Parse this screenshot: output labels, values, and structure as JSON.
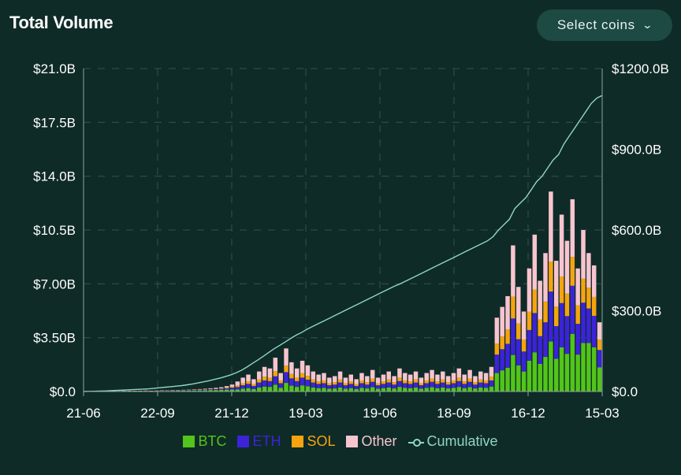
{
  "header": {
    "title": "Total Volume",
    "select_label": "Select coins"
  },
  "colors": {
    "BTC": "#52c41a",
    "ETH": "#3b23d9",
    "SOL": "#f5a40f",
    "Other": "#f7c5cf",
    "Cumulative": "#8fd6c4",
    "grid": "#2a4a45"
  },
  "chart_data": {
    "type": "bar",
    "title": "Total Volume",
    "x_ticks": [
      "21-06",
      "22-09",
      "21-12",
      "19-03",
      "19-06",
      "18-09",
      "16-12",
      "15-03"
    ],
    "y_left_ticks": [
      "$0.0",
      "$3.50B",
      "$7.00B",
      "$10.5B",
      "$14.0B",
      "$17.5B",
      "$21.0B"
    ],
    "y_right_ticks": [
      "$0.0",
      "$300.0B",
      "$600.0B",
      "$900.0B",
      "$1200.0B"
    ],
    "ylim_left": [
      0,
      21.0
    ],
    "ylim_right": [
      0,
      1200
    ],
    "grid": true,
    "legend_position": "bottom",
    "stack_series": [
      "BTC",
      "ETH",
      "SOL",
      "Other"
    ],
    "legend": [
      "BTC",
      "ETH",
      "SOL",
      "Other",
      "Cumulative"
    ],
    "weekly_total_volume_B": [
      0.02,
      0.02,
      0.03,
      0.03,
      0.03,
      0.04,
      0.03,
      0.04,
      0.05,
      0.04,
      0.05,
      0.06,
      0.05,
      0.06,
      0.08,
      0.07,
      0.09,
      0.1,
      0.11,
      0.12,
      0.14,
      0.16,
      0.18,
      0.21,
      0.24,
      0.28,
      0.35,
      0.45,
      0.65,
      0.9,
      1.1,
      0.8,
      1.3,
      1.6,
      1.5,
      2.2,
      1.2,
      2.8,
      1.9,
      1.5,
      2.0,
      1.7,
      1.3,
      1.1,
      1.2,
      0.9,
      1.0,
      1.3,
      0.9,
      1.1,
      0.8,
      1.2,
      1.0,
      1.4,
      0.9,
      1.1,
      1.3,
      1.0,
      1.5,
      1.2,
      1.1,
      1.3,
      0.9,
      1.2,
      1.4,
      1.1,
      1.3,
      1.0,
      1.2,
      1.5,
      1.1,
      1.4,
      1.0,
      1.3,
      1.2,
      1.6,
      4.8,
      5.5,
      6.2,
      9.5,
      6.8,
      5.2,
      8.0,
      10.2,
      7.2,
      9.0,
      13.0,
      8.5,
      11.5,
      9.8,
      12.5,
      8.0,
      10.5,
      9.0,
      8.2,
      4.5
    ],
    "btc_share": [
      0.55,
      0.55,
      0.55,
      0.55,
      0.55,
      0.55,
      0.55,
      0.55,
      0.55,
      0.55,
      0.55,
      0.55,
      0.55,
      0.55,
      0.5,
      0.5,
      0.5,
      0.5,
      0.5,
      0.5,
      0.45,
      0.45,
      0.45,
      0.45,
      0.4,
      0.4,
      0.35,
      0.3,
      0.2,
      0.2,
      0.2,
      0.2,
      0.2,
      0.2,
      0.2,
      0.2,
      0.2,
      0.2,
      0.2,
      0.2,
      0.2,
      0.2,
      0.2,
      0.2,
      0.2,
      0.2,
      0.2,
      0.2,
      0.2,
      0.2,
      0.2,
      0.2,
      0.2,
      0.2,
      0.2,
      0.2,
      0.2,
      0.2,
      0.2,
      0.2,
      0.2,
      0.2,
      0.2,
      0.2,
      0.2,
      0.2,
      0.2,
      0.2,
      0.2,
      0.2,
      0.2,
      0.2,
      0.2,
      0.2,
      0.2,
      0.2,
      0.25,
      0.25,
      0.25,
      0.25,
      0.25,
      0.25,
      0.25,
      0.25,
      0.25,
      0.25,
      0.25,
      0.25,
      0.25,
      0.25,
      0.3,
      0.3,
      0.3,
      0.35,
      0.35,
      0.35
    ],
    "eth_share": 0.25,
    "sol_share": 0.15,
    "cumulative_B": [
      0,
      0.5,
      1,
      1.5,
      2,
      3,
      4,
      5,
      6,
      7,
      8,
      9,
      10,
      12,
      14,
      16,
      18,
      20,
      22,
      25,
      28,
      32,
      36,
      40,
      45,
      50,
      56,
      62,
      70,
      80,
      92,
      105,
      118,
      132,
      146,
      160,
      172,
      185,
      198,
      210,
      220,
      232,
      242,
      252,
      262,
      272,
      282,
      292,
      302,
      312,
      322,
      332,
      342,
      352,
      362,
      372,
      382,
      392,
      400,
      410,
      420,
      430,
      440,
      450,
      460,
      470,
      480,
      490,
      500,
      510,
      520,
      530,
      540,
      550,
      560,
      575,
      600,
      620,
      640,
      680,
      700,
      720,
      750,
      780,
      800,
      830,
      860,
      880,
      920,
      950,
      980,
      1010,
      1040,
      1070,
      1090,
      1100
    ]
  }
}
